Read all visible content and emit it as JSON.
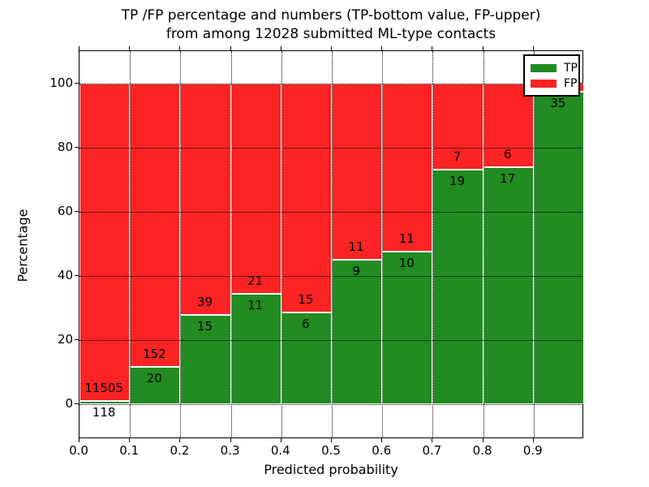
{
  "title": {
    "line1": "TP /FP percentage and numbers (TP-bottom value, FP-upper)",
    "line2": "from among 12028 submitted ML-type contacts"
  },
  "axes": {
    "xlabel": "Predicted probability",
    "ylabel": "Percentage"
  },
  "colors": {
    "tp_green": "#228b22",
    "fp_red": "#fb2323",
    "text": "#000000",
    "background": "#ffffff"
  },
  "chart_data": {
    "type": "bar",
    "stacked": true,
    "normalized_to_percent": 100,
    "title": "TP /FP percentage and numbers (TP-bottom value, FP-upper) from among 12028 submitted ML-type contacts",
    "xlabel": "Predicted probability",
    "ylabel": "Percentage",
    "total_contacts": 12028,
    "xlim": [
      0.0,
      1.0
    ],
    "ylim": [
      -11,
      110
    ],
    "x_tick_labels": [
      "0.0",
      "0.1",
      "0.2",
      "0.3",
      "0.4",
      "0.5",
      "0.6",
      "0.7",
      "0.8",
      "0.9"
    ],
    "y_tick_values": [
      0,
      20,
      40,
      60,
      80,
      100
    ],
    "grid": "dotted",
    "legend_position": "upper right",
    "series": [
      {
        "name": "TP",
        "color": "#228b22",
        "position": "bottom"
      },
      {
        "name": "FP",
        "color": "#fb2323",
        "position": "top"
      }
    ],
    "bins": [
      {
        "x_range": [
          0.0,
          0.1
        ],
        "tp": 118,
        "fp": 11505,
        "tp_pct": 1.02
      },
      {
        "x_range": [
          0.1,
          0.2
        ],
        "tp": 20,
        "fp": 152,
        "tp_pct": 11.63
      },
      {
        "x_range": [
          0.2,
          0.3
        ],
        "tp": 15,
        "fp": 39,
        "tp_pct": 27.78
      },
      {
        "x_range": [
          0.3,
          0.4
        ],
        "tp": 11,
        "fp": 21,
        "tp_pct": 34.38
      },
      {
        "x_range": [
          0.4,
          0.5
        ],
        "tp": 6,
        "fp": 15,
        "tp_pct": 28.57
      },
      {
        "x_range": [
          0.5,
          0.6
        ],
        "tp": 9,
        "fp": 11,
        "tp_pct": 45.0
      },
      {
        "x_range": [
          0.6,
          0.7
        ],
        "tp": 10,
        "fp": 11,
        "tp_pct": 47.62
      },
      {
        "x_range": [
          0.7,
          0.8
        ],
        "tp": 19,
        "fp": 7,
        "tp_pct": 73.08
      },
      {
        "x_range": [
          0.8,
          0.9
        ],
        "tp": 17,
        "fp": 6,
        "tp_pct": 73.91
      },
      {
        "x_range": [
          0.9,
          1.0
        ],
        "tp": 35,
        "fp": 1,
        "tp_pct": 97.22,
        "fp_label_hidden": true
      }
    ]
  }
}
